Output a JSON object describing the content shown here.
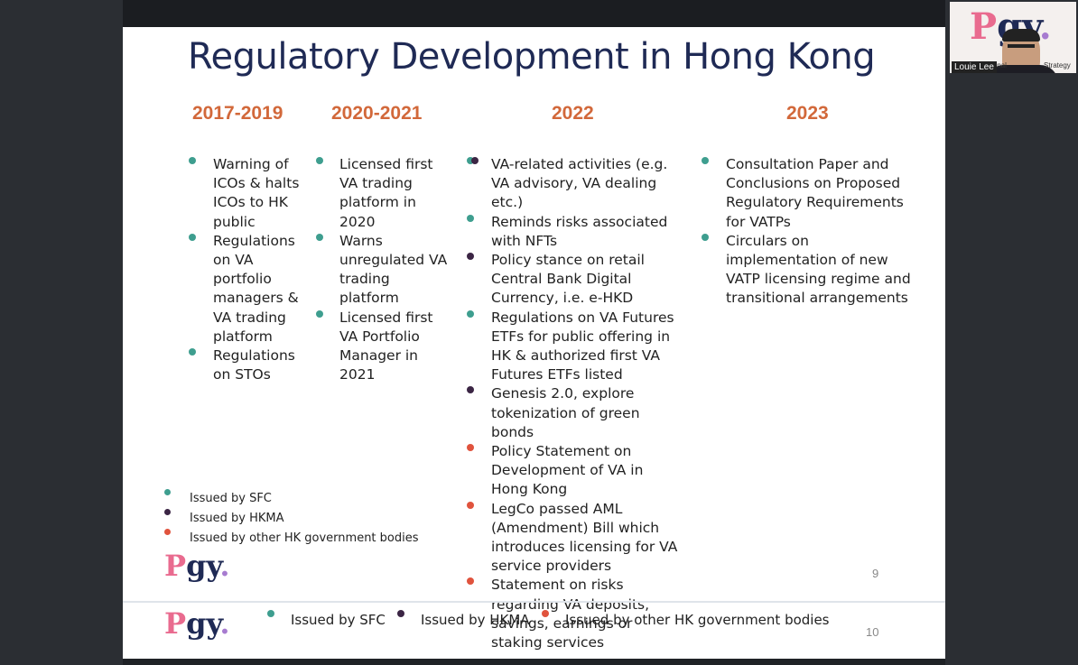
{
  "slide": {
    "title": "Regulatory Development in Hong Kong",
    "columns": [
      {
        "heading": "2017-2019",
        "items": [
          {
            "text": "Warning of ICOs & halts ICOs to HK public",
            "color": "#3e9e8f"
          },
          {
            "text": "Regulations on VA portfolio managers & VA trading platform",
            "color": "#3e9e8f"
          },
          {
            "text": "Regulations on STOs",
            "color": "#3e9e8f"
          }
        ]
      },
      {
        "heading": "2020-2021",
        "items": [
          {
            "text": "Licensed first VA trading platform in 2020",
            "color": "#3e9e8f"
          },
          {
            "text": "Warns unregulated VA trading platform",
            "color": "#3e9e8f"
          },
          {
            "text": "Licensed first VA Portfolio Manager in 2021",
            "color": "#3e9e8f"
          }
        ]
      },
      {
        "heading": "2022",
        "items": [
          {
            "text": "VA-related activities (e.g. VA advisory, VA dealing etc.)",
            "color": "#3e9e8f",
            "color2": "#3b2544"
          },
          {
            "text": "Reminds risks associated with NFTs",
            "color": "#3e9e8f"
          },
          {
            "text": "Policy stance on retail Central Bank Digital Currency, i.e. e-HKD",
            "color": "#3b2544"
          },
          {
            "text": "Regulations on VA Futures ETFs for public offering in HK & authorized first VA Futures ETFs listed",
            "color": "#3e9e8f"
          },
          {
            "text": "Genesis 2.0, explore tokenization of green bonds",
            "color": "#3b2544"
          },
          {
            "text": "Policy Statement on Development of VA in Hong Kong",
            "color": "#e0533d"
          },
          {
            "text": "LegCo passed AML (Amendment) Bill which introduces licensing for VA service providers",
            "color": "#e0533d"
          },
          {
            "text": "Statement on risks regarding VA deposits, savings, earnings or staking services",
            "color": "#e0533d"
          }
        ]
      },
      {
        "heading": "2023",
        "items": [
          {
            "text": "Consultation Paper and Conclusions on Proposed Regulatory Requirements for VATPs",
            "color": "#3e9e8f"
          },
          {
            "text": "Circulars on implementation of new VATP licensing regime and transitional arrangements",
            "color": "#3e9e8f"
          }
        ]
      }
    ],
    "legend": [
      {
        "label": "Issued by SFC",
        "color": "#3e9e8f"
      },
      {
        "label": "Issued by HKMA",
        "color": "#3b2544"
      },
      {
        "label": "Issued by other HK government bodies",
        "color": "#e0533d"
      }
    ],
    "page_number": "9",
    "logo": {
      "p": "P",
      "gy": "gy",
      "dot": "."
    }
  },
  "next_slide": {
    "page_number": "10",
    "legend": [
      {
        "label": "Issued by SFC",
        "color": "#3e9e8f"
      },
      {
        "label": "Issued by HKMA",
        "color": "#3b2544"
      },
      {
        "label": "Issued by other HK government bodies",
        "color": "#e0533d"
      }
    ]
  },
  "video": {
    "name_tag": "Louie Lee",
    "side_left": "ssional",
    "side_right": "Strategy"
  }
}
